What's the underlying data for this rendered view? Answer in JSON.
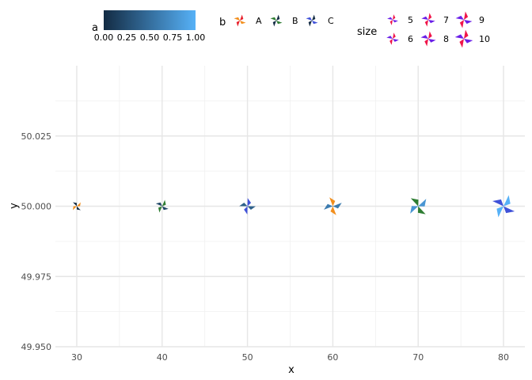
{
  "chart_data": {
    "type": "scatter",
    "xlabel": "x",
    "ylabel": "y",
    "xlim": [
      27.5,
      82.5
    ],
    "ylim": [
      49.95,
      50.05
    ],
    "x_ticks": [
      30,
      40,
      50,
      60,
      70,
      80
    ],
    "x_tick_labels": [
      "30",
      "40",
      "50",
      "60",
      "70",
      "80"
    ],
    "y_ticks": [
      49.95,
      49.975,
      50.0,
      50.025
    ],
    "y_tick_labels": [
      "49.950",
      "49.975",
      "50.000",
      "50.025"
    ],
    "grid": true,
    "legend_position": "top",
    "points": [
      {
        "x": 30,
        "y": 50.0,
        "a": 0.0,
        "b": "A",
        "size": 5
      },
      {
        "x": 40,
        "y": 50.0,
        "a": 0.2,
        "b": "B",
        "size": 6
      },
      {
        "x": 50,
        "y": 50.0,
        "a": 0.4,
        "b": "C",
        "size": 7
      },
      {
        "x": 60,
        "y": 50.0,
        "a": 0.6,
        "b": "A",
        "size": 8
      },
      {
        "x": 70,
        "y": 50.0,
        "a": 0.8,
        "b": "B",
        "size": 9
      },
      {
        "x": 80,
        "y": 50.0,
        "a": 1.0,
        "b": "C",
        "size": 10
      }
    ],
    "legend_a": {
      "title": "a",
      "low_color": "#132B43",
      "high_color": "#56B1F7",
      "labels": [
        "0.00",
        "0.25",
        "0.50",
        "0.75",
        "1.00"
      ],
      "values": [
        0.0,
        0.25,
        0.5,
        0.75,
        1.0
      ]
    },
    "legend_b": {
      "title": "b",
      "items": [
        {
          "label": "A",
          "color": "#F8766D"
        },
        {
          "label": "B",
          "color": "#2E7D32"
        },
        {
          "label": "C",
          "color": "#3F51D8"
        }
      ],
      "accent": "#F28E1C",
      "dark": "#132B43"
    },
    "legend_size": {
      "title": "size",
      "items": [
        {
          "label": "5",
          "value": 5
        },
        {
          "label": "6",
          "value": 6
        },
        {
          "label": "7",
          "value": 7
        },
        {
          "label": "8",
          "value": 8
        },
        {
          "label": "9",
          "value": 9
        },
        {
          "label": "10",
          "value": 10
        }
      ],
      "color_1": "#6A1FE8",
      "color_2": "#F0154A"
    }
  }
}
